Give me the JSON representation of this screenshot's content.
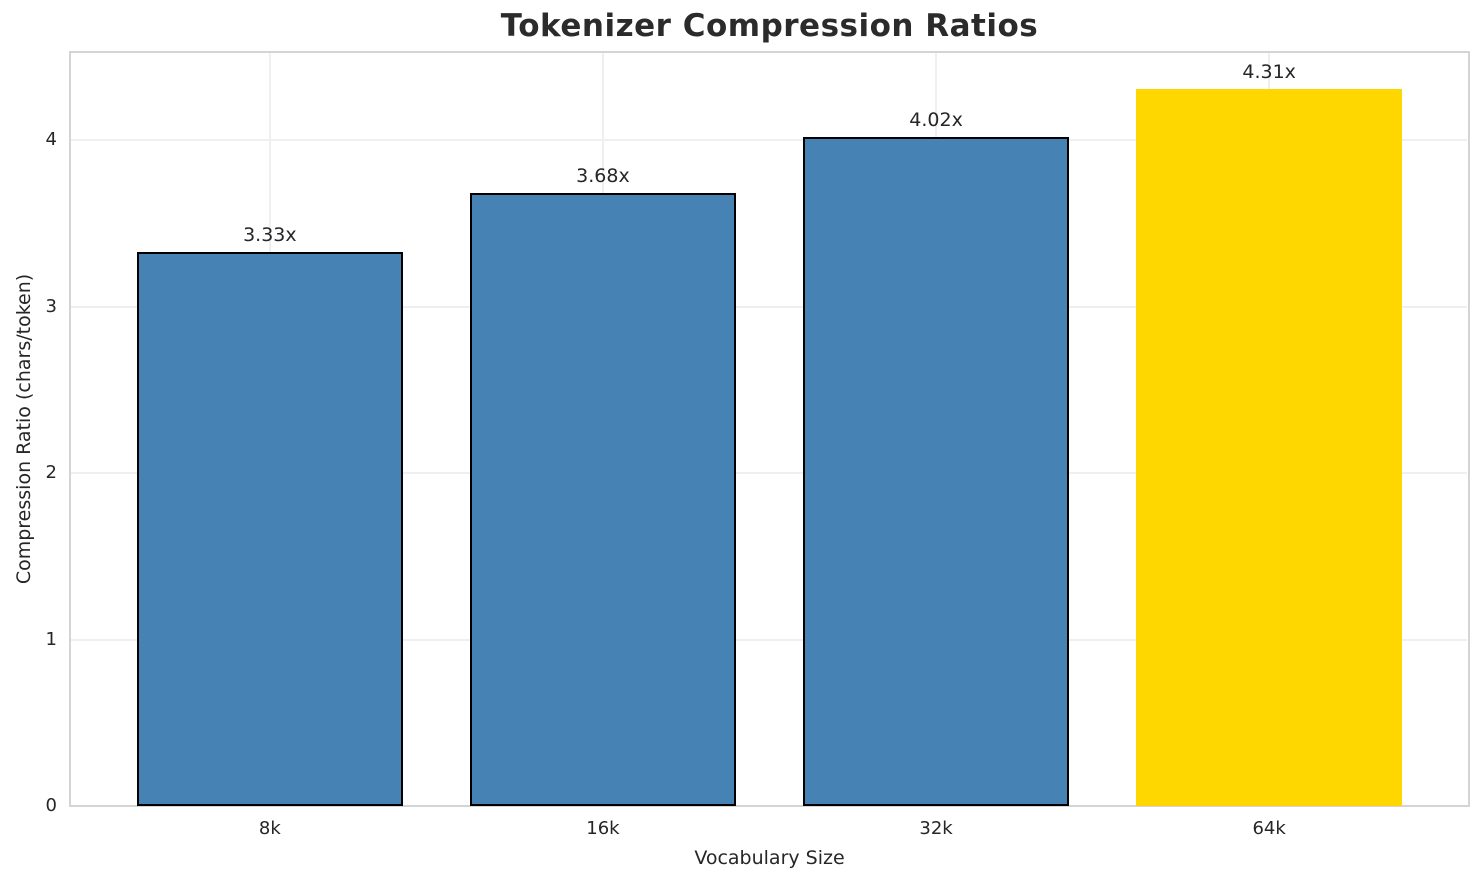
{
  "chart_data": {
    "type": "bar",
    "title": "Tokenizer Compression Ratios",
    "xlabel": "Vocabulary Size",
    "ylabel": "Compression Ratio (chars/token)",
    "categories": [
      "8k",
      "16k",
      "32k",
      "64k"
    ],
    "values": [
      3.33,
      3.68,
      4.02,
      4.31
    ],
    "bar_labels": [
      "3.33x",
      "3.68x",
      "4.02x",
      "4.31x"
    ],
    "yticks": [
      0,
      1,
      2,
      3,
      4
    ],
    "ylim": [
      0,
      4.53
    ],
    "xlim_categories": [
      -0.6,
      3.6
    ],
    "bar_width_fraction": 0.8,
    "grid": true,
    "legend": "none",
    "colors": {
      "bar_default": "#4682b4",
      "bar_highlight": "#ffd700",
      "bar_edge": "#000000",
      "gridline": "#efefef",
      "spine": "#d4d4d4",
      "text": "#262626",
      "background": "#ffffff"
    },
    "bar_colors": [
      "#4682b4",
      "#4682b4",
      "#4682b4",
      "#ffd700"
    ],
    "bar_edges": [
      "#000000",
      "#000000",
      "#000000",
      "none"
    ]
  }
}
